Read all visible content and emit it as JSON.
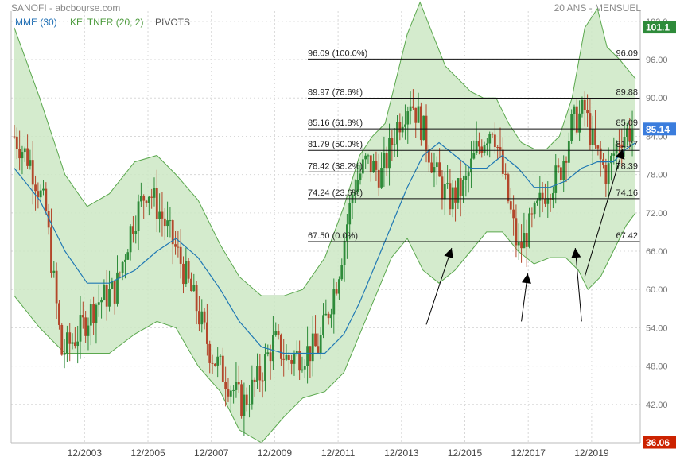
{
  "header": {
    "title": "SANOFI - abcbourse.com",
    "period": "20 ANS - MENSUEL"
  },
  "legend": [
    {
      "label": "MME (30)",
      "color": "#1f6fb5"
    },
    {
      "label": "KELTNER (20, 2)",
      "color": "#4a9a3a"
    },
    {
      "label": "PIVOTS",
      "color": "#555555"
    }
  ],
  "colors": {
    "keltner_fill": "#cce8c4",
    "keltner_line": "#5ba84e",
    "ema": "#1f78b4",
    "up": "#2e8b3a",
    "down": "#b3472b",
    "last_badge": "#3b7ddd",
    "high_badge": "#2e8b3a",
    "low_badge": "#cc2200"
  },
  "chart_data": {
    "type": "candlestick",
    "title": "SANOFI",
    "x_tick_labels": [
      "12/2003",
      "12/2005",
      "12/2007",
      "12/2009",
      "12/2011",
      "12/2013",
      "12/2015",
      "12/2017",
      "12/2019"
    ],
    "y_tick_labels": [
      "42.00",
      "48.00",
      "54.00",
      "60.00",
      "66.00",
      "72.00",
      "78.00",
      "84.00",
      "90.00",
      "96.00",
      "102.0"
    ],
    "ylim": [
      36,
      103.6
    ],
    "series": [
      {
        "name": "MME (30)",
        "points": [
          [
            2001.7,
            79
          ],
          [
            2002.5,
            74
          ],
          [
            2003.3,
            66
          ],
          [
            2004.0,
            61
          ],
          [
            2004.7,
            61
          ],
          [
            2005.5,
            63
          ],
          [
            2006.2,
            66
          ],
          [
            2006.8,
            68
          ],
          [
            2007.5,
            65
          ],
          [
            2008.2,
            60
          ],
          [
            2008.8,
            55
          ],
          [
            2009.5,
            51
          ],
          [
            2010.2,
            50
          ],
          [
            2010.8,
            50
          ],
          [
            2011.5,
            50
          ],
          [
            2012.1,
            53
          ],
          [
            2012.6,
            58
          ],
          [
            2013.1,
            64
          ],
          [
            2013.6,
            70
          ],
          [
            2014.1,
            76
          ],
          [
            2014.6,
            81
          ],
          [
            2015.1,
            83
          ],
          [
            2015.6,
            81
          ],
          [
            2016.1,
            79
          ],
          [
            2016.6,
            79
          ],
          [
            2017.1,
            81
          ],
          [
            2017.6,
            79
          ],
          [
            2018.1,
            76
          ],
          [
            2018.6,
            76
          ],
          [
            2019.1,
            77
          ],
          [
            2019.6,
            79
          ],
          [
            2020.1,
            80
          ],
          [
            2020.6,
            80
          ],
          [
            2021.0,
            82
          ],
          [
            2021.3,
            83
          ]
        ]
      },
      {
        "name": "KELTNER (20, 2)",
        "upper": [
          [
            2001.7,
            101
          ],
          [
            2002.5,
            90
          ],
          [
            2003.3,
            78
          ],
          [
            2004.0,
            73
          ],
          [
            2004.7,
            75
          ],
          [
            2005.5,
            80
          ],
          [
            2006.2,
            81
          ],
          [
            2006.8,
            78
          ],
          [
            2007.5,
            74
          ],
          [
            2008.2,
            67
          ],
          [
            2008.8,
            62
          ],
          [
            2009.5,
            59
          ],
          [
            2010.2,
            59
          ],
          [
            2010.8,
            60
          ],
          [
            2011.5,
            65
          ],
          [
            2012.1,
            73
          ],
          [
            2012.6,
            81
          ],
          [
            2013.0,
            84
          ],
          [
            2013.4,
            86
          ],
          [
            2013.8,
            94
          ],
          [
            2014.1,
            100
          ],
          [
            2014.5,
            105
          ],
          [
            2014.9,
            100
          ],
          [
            2015.3,
            95
          ],
          [
            2015.7,
            93
          ],
          [
            2016.1,
            91
          ],
          [
            2016.5,
            90
          ],
          [
            2016.9,
            90
          ],
          [
            2017.3,
            86
          ],
          [
            2017.7,
            83
          ],
          [
            2018.1,
            82
          ],
          [
            2018.5,
            82
          ],
          [
            2018.9,
            84
          ],
          [
            2019.3,
            90
          ],
          [
            2019.7,
            101
          ],
          [
            2020.1,
            104
          ],
          [
            2020.4,
            98
          ],
          [
            2020.8,
            96
          ],
          [
            2021.3,
            93
          ]
        ],
        "lower": [
          [
            2001.7,
            59
          ],
          [
            2002.5,
            54
          ],
          [
            2003.3,
            50
          ],
          [
            2004.0,
            50
          ],
          [
            2004.7,
            50
          ],
          [
            2005.5,
            53
          ],
          [
            2006.2,
            55
          ],
          [
            2006.8,
            54
          ],
          [
            2007.5,
            48
          ],
          [
            2008.2,
            44
          ],
          [
            2008.8,
            38
          ],
          [
            2009.5,
            36
          ],
          [
            2010.2,
            40
          ],
          [
            2010.8,
            43
          ],
          [
            2011.5,
            44
          ],
          [
            2012.1,
            47
          ],
          [
            2012.6,
            53
          ],
          [
            2013.1,
            59
          ],
          [
            2013.6,
            65
          ],
          [
            2014.1,
            68
          ],
          [
            2014.6,
            63
          ],
          [
            2015.1,
            61
          ],
          [
            2015.6,
            63
          ],
          [
            2016.1,
            66
          ],
          [
            2016.6,
            69
          ],
          [
            2017.1,
            69
          ],
          [
            2017.6,
            66
          ],
          [
            2018.1,
            64
          ],
          [
            2018.6,
            65
          ],
          [
            2019.1,
            65
          ],
          [
            2019.5,
            63
          ],
          [
            2019.8,
            60
          ],
          [
            2020.2,
            62
          ],
          [
            2020.6,
            66
          ],
          [
            2021.0,
            70
          ],
          [
            2021.3,
            72
          ]
        ]
      },
      {
        "name": "SANOFI",
        "path": [
          [
            2001.7,
            84
          ],
          [
            2002.2,
            80
          ],
          [
            2002.7,
            72
          ],
          [
            2003.2,
            50
          ],
          [
            2003.7,
            53
          ],
          [
            2004.3,
            58
          ],
          [
            2004.9,
            60
          ],
          [
            2005.4,
            70
          ],
          [
            2005.9,
            76
          ],
          [
            2006.4,
            71
          ],
          [
            2006.9,
            65
          ],
          [
            2007.4,
            58
          ],
          [
            2007.9,
            50
          ],
          [
            2008.4,
            46
          ],
          [
            2008.9,
            42
          ],
          [
            2009.4,
            46
          ],
          [
            2009.9,
            52
          ],
          [
            2010.3,
            49
          ],
          [
            2010.8,
            50
          ],
          [
            2011.3,
            51
          ],
          [
            2011.9,
            62
          ],
          [
            2012.4,
            76
          ],
          [
            2012.8,
            80
          ],
          [
            2013.3,
            78
          ],
          [
            2013.8,
            86
          ],
          [
            2014.2,
            90
          ],
          [
            2014.6,
            85
          ],
          [
            2015.0,
            78
          ],
          [
            2015.4,
            74
          ],
          [
            2015.9,
            76
          ],
          [
            2016.3,
            82
          ],
          [
            2016.8,
            86
          ],
          [
            2017.2,
            76
          ],
          [
            2017.6,
            66
          ],
          [
            2018.0,
            70
          ],
          [
            2018.5,
            76
          ],
          [
            2018.9,
            78
          ],
          [
            2019.3,
            86
          ],
          [
            2019.7,
            88
          ],
          [
            2020.0,
            82
          ],
          [
            2020.4,
            78
          ],
          [
            2020.8,
            84
          ],
          [
            2021.2,
            85.1
          ]
        ]
      }
    ],
    "fibonacci_levels": [
      {
        "value": 96.09,
        "label": "96.09  (100.0%)",
        "right_label": "96.09"
      },
      {
        "value": 89.97,
        "label": "89.97  (78.6%)",
        "right_label": "89.88"
      },
      {
        "value": 85.16,
        "label": "85.16  (61.8%)",
        "right_label": "85.09"
      },
      {
        "value": 81.79,
        "label": "81.79  (50.0%)",
        "right_label": "81.77"
      },
      {
        "value": 78.42,
        "label": "78.42  (38.2%)",
        "right_label": "78.39"
      },
      {
        "value": 74.24,
        "label": "74.24  (23.6%)",
        "right_label": "74.16"
      },
      {
        "value": 67.5,
        "label": "67.50  (0.0%)",
        "right_label": "67.42"
      }
    ],
    "badges": [
      {
        "value": 101.1,
        "label": "101.1",
        "kind": "high"
      },
      {
        "value": 85.14,
        "label": "85.14",
        "kind": "last"
      },
      {
        "value": 36.06,
        "label": "36.06",
        "kind": "low"
      }
    ],
    "arrows": [
      {
        "from": [
          2014.7,
          54.5
        ],
        "to": [
          2015.5,
          66.5
        ]
      },
      {
        "from": [
          2017.7,
          55.0
        ],
        "to": [
          2017.9,
          62.5
        ]
      },
      {
        "from": [
          2019.6,
          55.0
        ],
        "to": [
          2019.4,
          66.5
        ]
      },
      {
        "from": [
          2019.7,
          62.0
        ],
        "to": [
          2020.9,
          82.0
        ]
      }
    ]
  }
}
